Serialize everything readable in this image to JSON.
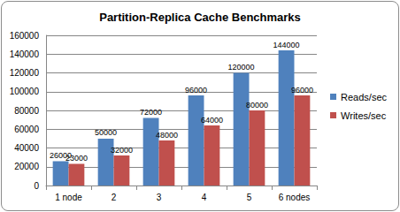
{
  "chart_data": {
    "type": "bar",
    "title": "Partition-Replica Cache Benchmarks",
    "categories": [
      "1 node",
      "2",
      "3",
      "4",
      "5",
      "6 nodes"
    ],
    "series": [
      {
        "name": "Reads/sec",
        "color": "#4f81bd",
        "values": [
          26000,
          50000,
          72000,
          96000,
          120000,
          144000
        ]
      },
      {
        "name": "Writes/sec",
        "color": "#c0504d",
        "values": [
          23000,
          32000,
          48000,
          64000,
          80000,
          96000
        ]
      }
    ],
    "ylim": [
      0,
      160000
    ],
    "yticks": [
      0,
      20000,
      40000,
      60000,
      80000,
      100000,
      120000,
      140000,
      160000
    ],
    "grid": true,
    "legend": "right",
    "data_labels": true
  }
}
